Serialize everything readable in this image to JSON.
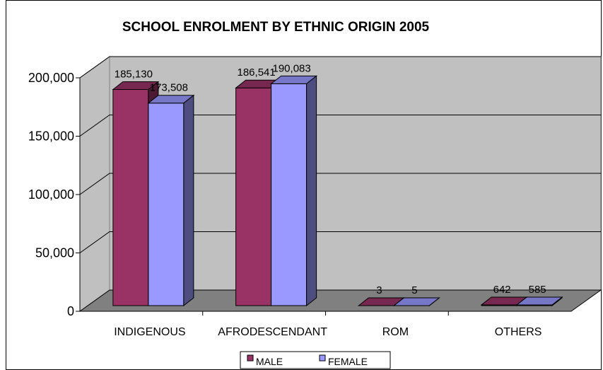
{
  "chart_data": {
    "type": "bar",
    "title": "SCHOOL ENROLMENT BY ETHNIC ORIGIN 2005",
    "categories": [
      "INDIGENOUS",
      "AFRODESCENDANT",
      "ROM",
      "OTHERS"
    ],
    "series": [
      {
        "name": "MALE",
        "values": [
          185130,
          186541,
          3,
          642
        ],
        "labels": [
          "185,130",
          "186,541",
          "3",
          "642"
        ],
        "color": "#993366"
      },
      {
        "name": "FEMALE",
        "values": [
          173508,
          190083,
          5,
          585
        ],
        "labels": [
          "173,508",
          "190,083",
          "5",
          "585"
        ],
        "color": "#9999FF"
      }
    ],
    "yticks": [
      "0",
      "50,000",
      "100,000",
      "150,000",
      "200,000"
    ],
    "ylim": [
      0,
      200000
    ],
    "grid": true,
    "legend": "bottom",
    "style": "3d-clustered-column",
    "wall_color": "#C0C0C0",
    "floor_color": "#808080"
  }
}
